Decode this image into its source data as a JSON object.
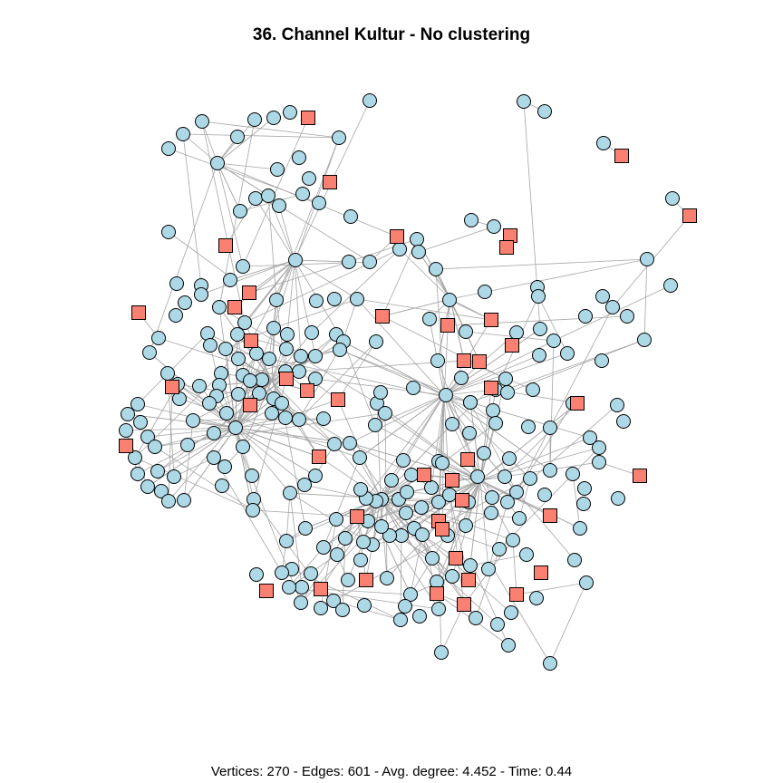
{
  "title": "36. Channel Kultur - No clustering",
  "stats": "Vertices: 270 - Edges: 601 - Avg. degree: 4.452 - Time: 0.44",
  "colors": {
    "circle_fill": "#add8e6",
    "square_fill": "#fa8072",
    "edge": "#a6a6a6",
    "stroke": "#000000"
  },
  "graph": {
    "vertex_count": 270,
    "edge_count": 601,
    "vertex_shapes": [
      "circle",
      "square"
    ],
    "layout": "force-directed"
  }
}
